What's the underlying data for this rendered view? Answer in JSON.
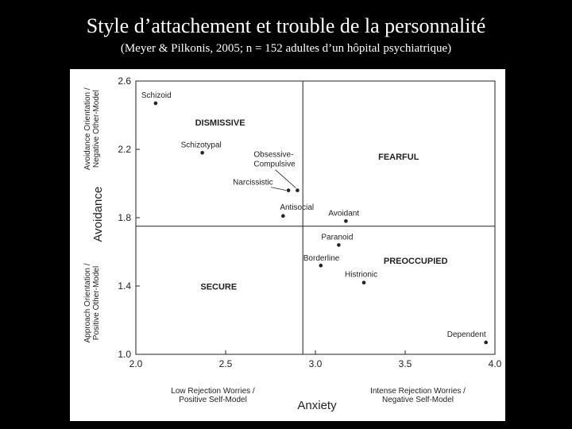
{
  "slide": {
    "title": "Style d’attachement et trouble de la personnalité",
    "subtitle": "(Meyer & Pilkonis, 2005; n = 152 adultes d’un hôpital psychiatrique)"
  },
  "colors": {
    "background": "#000000",
    "panel": "#ffffff",
    "ink": "#222222"
  },
  "chart_data": {
    "type": "scatter",
    "xlim": [
      2.0,
      4.0
    ],
    "ylim": [
      1.0,
      2.6
    ],
    "x_ticks": [
      "2.0",
      "2.5",
      "3.0",
      "3.5",
      "4.0"
    ],
    "y_ticks": [
      "2.6",
      "2.2",
      "1.8",
      "1.4",
      "1.0"
    ],
    "xlabel": "Anxiety",
    "ylabel": "Avoidance",
    "x_low_label": [
      "Low Rejection Worries /",
      "Positive Self-Model"
    ],
    "x_high_label": [
      "Intense Rejection Worries /",
      "Negative Self-Model"
    ],
    "y_high_label": [
      "Avoidance Orientation /",
      "Negative Other-Model"
    ],
    "y_low_label": [
      "Approach Orientation /",
      "Positive Other-Model"
    ],
    "dividers": {
      "x": 2.93,
      "y": 1.75
    },
    "quadrants": [
      "DISMISSIVE",
      "FEARFUL",
      "PREOCCUPIED",
      "SECURE"
    ],
    "points": [
      {
        "label": "Schizoid",
        "x": 2.11,
        "y": 2.47
      },
      {
        "label": "Schizotypal",
        "x": 2.37,
        "y": 2.18
      },
      {
        "label": "Obsessive-Compulsive",
        "x": 2.9,
        "y": 1.96
      },
      {
        "label": "Narcissistic",
        "x": 2.85,
        "y": 1.96
      },
      {
        "label": "Antisocial",
        "x": 2.82,
        "y": 1.81
      },
      {
        "label": "Avoidant",
        "x": 3.17,
        "y": 1.78
      },
      {
        "label": "Paranoid",
        "x": 3.13,
        "y": 1.64
      },
      {
        "label": "Borderline",
        "x": 3.03,
        "y": 1.52
      },
      {
        "label": "Histrionic",
        "x": 3.27,
        "y": 1.42
      },
      {
        "label": "Dependent",
        "x": 3.95,
        "y": 1.07
      }
    ]
  }
}
